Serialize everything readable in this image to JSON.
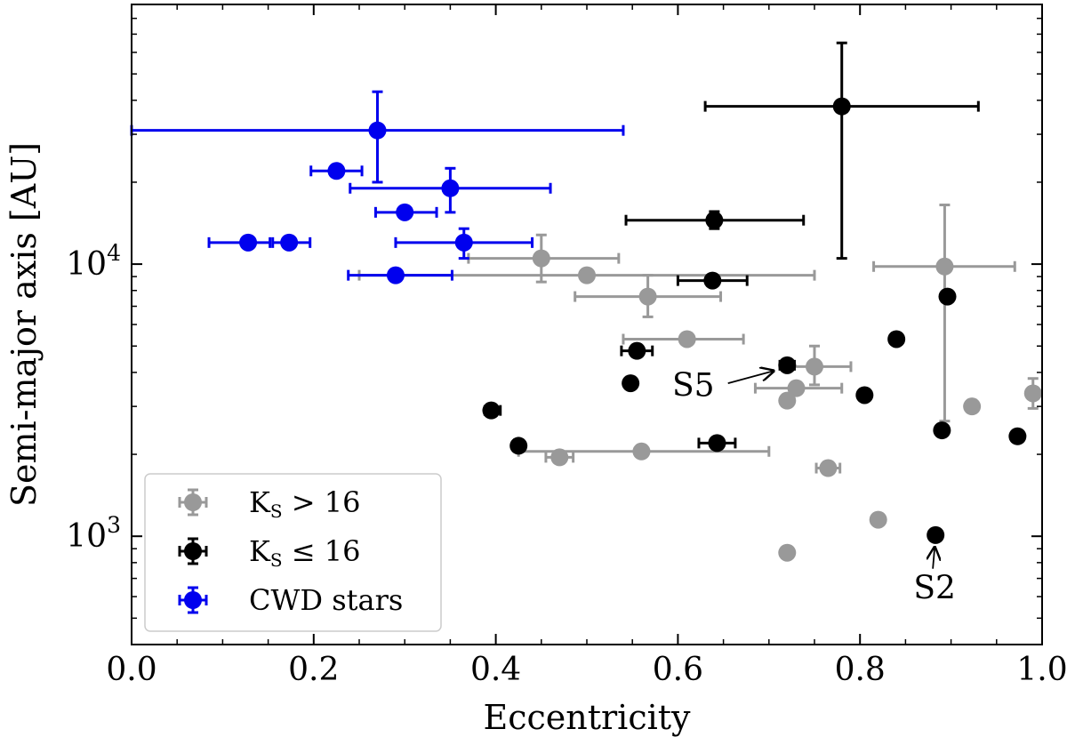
{
  "chart_data": {
    "type": "scatter",
    "xlabel": "Eccentricity",
    "ylabel": "Semi-major axis [AU]",
    "xlim": [
      0.0,
      1.0
    ],
    "ylim": [
      400,
      90000
    ],
    "yscale": "log",
    "x_ticks": [
      0.0,
      0.2,
      0.4,
      0.6,
      0.8,
      1.0
    ],
    "x_tick_labels": [
      "0.0",
      "0.2",
      "0.4",
      "0.6",
      "0.8",
      "1.0"
    ],
    "y_ticks": [
      1000,
      10000
    ],
    "y_tick_labels": [
      {
        "base": "10",
        "exp": "3"
      },
      {
        "base": "10",
        "exp": "4"
      }
    ],
    "legend_position": "lower-left",
    "series": [
      {
        "name": "Ks > 16",
        "label_main": "K",
        "label_sub": "S",
        "label_rel": " > 16",
        "color": "#999999",
        "points": [
          {
            "x": 0.45,
            "y": 10500,
            "xerr": [
              0.37,
              0.535
            ],
            "yerr": [
              8600,
              12800
            ]
          },
          {
            "x": 0.5,
            "y": 9100,
            "xerr": [
              0.25,
              0.75
            ]
          },
          {
            "x": 0.567,
            "y": 7600,
            "xerr": [
              0.487,
              0.647
            ],
            "yerr": [
              6400,
              9100
            ]
          },
          {
            "x": 0.61,
            "y": 5300,
            "xerr": [
              0.54,
              0.672
            ]
          },
          {
            "x": 0.75,
            "y": 4200,
            "xerr": [
              0.715,
              0.79
            ],
            "yerr": [
              3600,
              5000
            ]
          },
          {
            "x": 0.73,
            "y": 3500,
            "xerr": [
              0.685,
              0.78
            ]
          },
          {
            "x": 0.72,
            "y": 3150
          },
          {
            "x": 0.47,
            "y": 1950,
            "xerr": [
              0.455,
              0.485
            ]
          },
          {
            "x": 0.56,
            "y": 2050,
            "xerr": [
              0.425,
              0.7
            ]
          },
          {
            "x": 0.765,
            "y": 1780,
            "xerr": [
              0.752,
              0.778
            ]
          },
          {
            "x": 0.82,
            "y": 1150
          },
          {
            "x": 0.72,
            "y": 870
          },
          {
            "x": 0.893,
            "y": 9800,
            "xerr": [
              0.815,
              0.97
            ],
            "yerr": [
              2650,
              16500
            ]
          },
          {
            "x": 0.923,
            "y": 3000
          },
          {
            "x": 0.99,
            "y": 3350,
            "yerr": [
              2950,
              3800
            ]
          }
        ]
      },
      {
        "name": "Ks ≤ 16",
        "label_main": "K",
        "label_sub": "S",
        "label_rel": " ≤ 16",
        "color": "#000000",
        "points": [
          {
            "x": 0.78,
            "y": 38000,
            "xerr": [
              0.63,
              0.93
            ],
            "yerr": [
              10500,
              65000
            ]
          },
          {
            "x": 0.64,
            "y": 14500,
            "xerr": [
              0.543,
              0.738
            ],
            "yerr": [
              13500,
              15600
            ]
          },
          {
            "x": 0.638,
            "y": 8700,
            "xerr": [
              0.6,
              0.676
            ]
          },
          {
            "x": 0.555,
            "y": 4800,
            "xerr": [
              0.538,
              0.572
            ]
          },
          {
            "x": 0.72,
            "y": 4250,
            "xerr": [
              0.712,
              0.728
            ]
          },
          {
            "x": 0.548,
            "y": 3650
          },
          {
            "x": 0.395,
            "y": 2900,
            "xerr": [
              0.388,
              0.405
            ]
          },
          {
            "x": 0.805,
            "y": 3300
          },
          {
            "x": 0.84,
            "y": 5300
          },
          {
            "x": 0.896,
            "y": 7600
          },
          {
            "x": 0.425,
            "y": 2150
          },
          {
            "x": 0.643,
            "y": 2200,
            "xerr": [
              0.623,
              0.663
            ]
          },
          {
            "x": 0.89,
            "y": 2450
          },
          {
            "x": 0.973,
            "y": 2330
          },
          {
            "x": 0.883,
            "y": 1010
          }
        ]
      },
      {
        "name": "CWD stars",
        "label_main": "CWD stars",
        "label_sub": "",
        "label_rel": "",
        "color": "#0000ee",
        "points": [
          {
            "x": 0.27,
            "y": 31000,
            "xerr": [
              0.0,
              0.54
            ],
            "yerr": [
              20000,
              43000
            ]
          },
          {
            "x": 0.225,
            "y": 22000,
            "xerr": [
              0.197,
              0.253
            ]
          },
          {
            "x": 0.35,
            "y": 19000,
            "xerr": [
              0.24,
              0.46
            ],
            "yerr": [
              15500,
              22500
            ]
          },
          {
            "x": 0.3,
            "y": 15500,
            "xerr": [
              0.268,
              0.335
            ]
          },
          {
            "x": 0.365,
            "y": 12000,
            "xerr": [
              0.29,
              0.44
            ],
            "yerr": [
              10500,
              13500
            ]
          },
          {
            "x": 0.128,
            "y": 12000,
            "xerr": [
              0.085,
              0.152
            ]
          },
          {
            "x": 0.173,
            "y": 12000,
            "xerr": [
              0.155,
              0.196
            ]
          },
          {
            "x": 0.29,
            "y": 9100,
            "xerr": [
              0.238,
              0.352
            ]
          }
        ]
      }
    ],
    "annotations": [
      {
        "text": "S5",
        "x": 0.617,
        "y": 3280,
        "arrow_from": {
          "x": 0.655,
          "y": 3650
        },
        "arrow_to": {
          "x": 0.705,
          "y": 4050
        }
      },
      {
        "text": "S2",
        "x": 0.882,
        "y": 590,
        "arrow_from": {
          "x": 0.88,
          "y": 760
        },
        "arrow_to": {
          "x": 0.882,
          "y": 910
        }
      }
    ]
  }
}
